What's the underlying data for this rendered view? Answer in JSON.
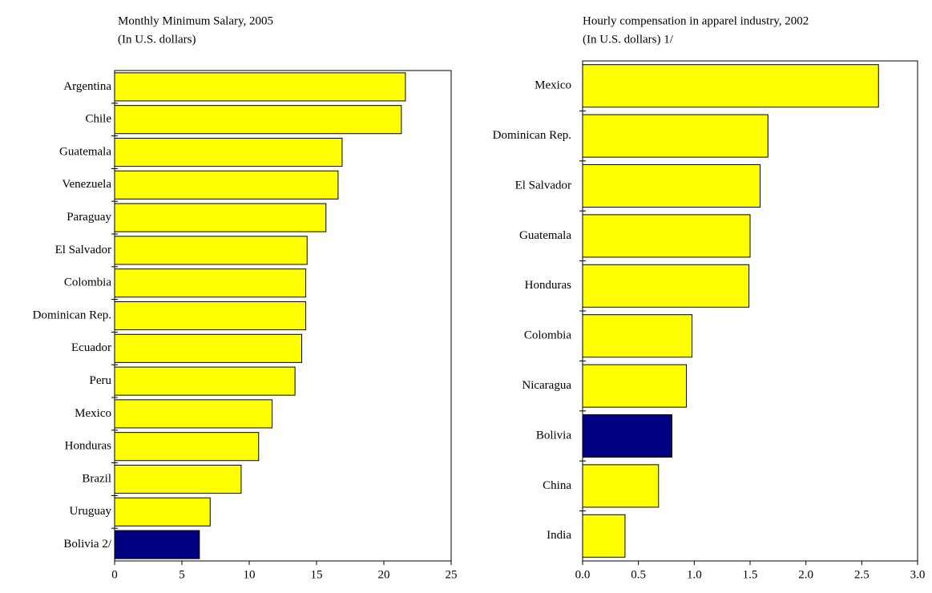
{
  "chart_data": [
    {
      "type": "hbar",
      "title": "Monthly Minimum Salary, 2005",
      "subtitle": "(In U.S. dollars)",
      "categories": [
        "Argentina",
        "Chile",
        "Guatemala",
        "Venezuela",
        "Paraguay",
        "El Salvador",
        "Colombia",
        "Dominican Rep.",
        "Ecuador",
        "Peru",
        "Mexico",
        "Honduras",
        "Brazil",
        "Uruguay",
        "Bolivia 2/"
      ],
      "values": [
        21.6,
        21.3,
        16.9,
        16.6,
        15.7,
        14.3,
        14.2,
        14.2,
        13.9,
        13.4,
        11.7,
        10.7,
        9.4,
        7.1,
        6.3
      ],
      "colors": [
        "#ffff00",
        "#ffff00",
        "#ffff00",
        "#ffff00",
        "#ffff00",
        "#ffff00",
        "#ffff00",
        "#ffff00",
        "#ffff00",
        "#ffff00",
        "#ffff00",
        "#ffff00",
        "#ffff00",
        "#ffff00",
        "#000080"
      ],
      "xlim": [
        0,
        25
      ],
      "xticks": [
        0,
        5,
        10,
        15,
        20,
        25
      ]
    },
    {
      "type": "hbar",
      "title": "Hourly compensation in apparel industry, 2002",
      "subtitle": "(In U.S. dollars) 1/",
      "categories": [
        "Mexico",
        "Dominican Rep.",
        "El Salvador",
        "Guatemala",
        "Honduras",
        "Colombia",
        "Nicaragua",
        "Bolivia",
        "China",
        "India"
      ],
      "values": [
        2.65,
        1.66,
        1.59,
        1.5,
        1.49,
        0.98,
        0.93,
        0.8,
        0.68,
        0.38
      ],
      "colors": [
        "#ffff00",
        "#ffff00",
        "#ffff00",
        "#ffff00",
        "#ffff00",
        "#ffff00",
        "#ffff00",
        "#000080",
        "#ffff00",
        "#ffff00"
      ],
      "xlim": [
        0,
        3
      ],
      "xticks": [
        {
          "value": 0,
          "label": "0.0"
        },
        0.5,
        {
          "value": 1,
          "label": "1.0"
        },
        1.5,
        {
          "value": 2,
          "label": "2.0"
        },
        2.5,
        {
          "value": 3,
          "label": "3.0"
        }
      ]
    }
  ]
}
